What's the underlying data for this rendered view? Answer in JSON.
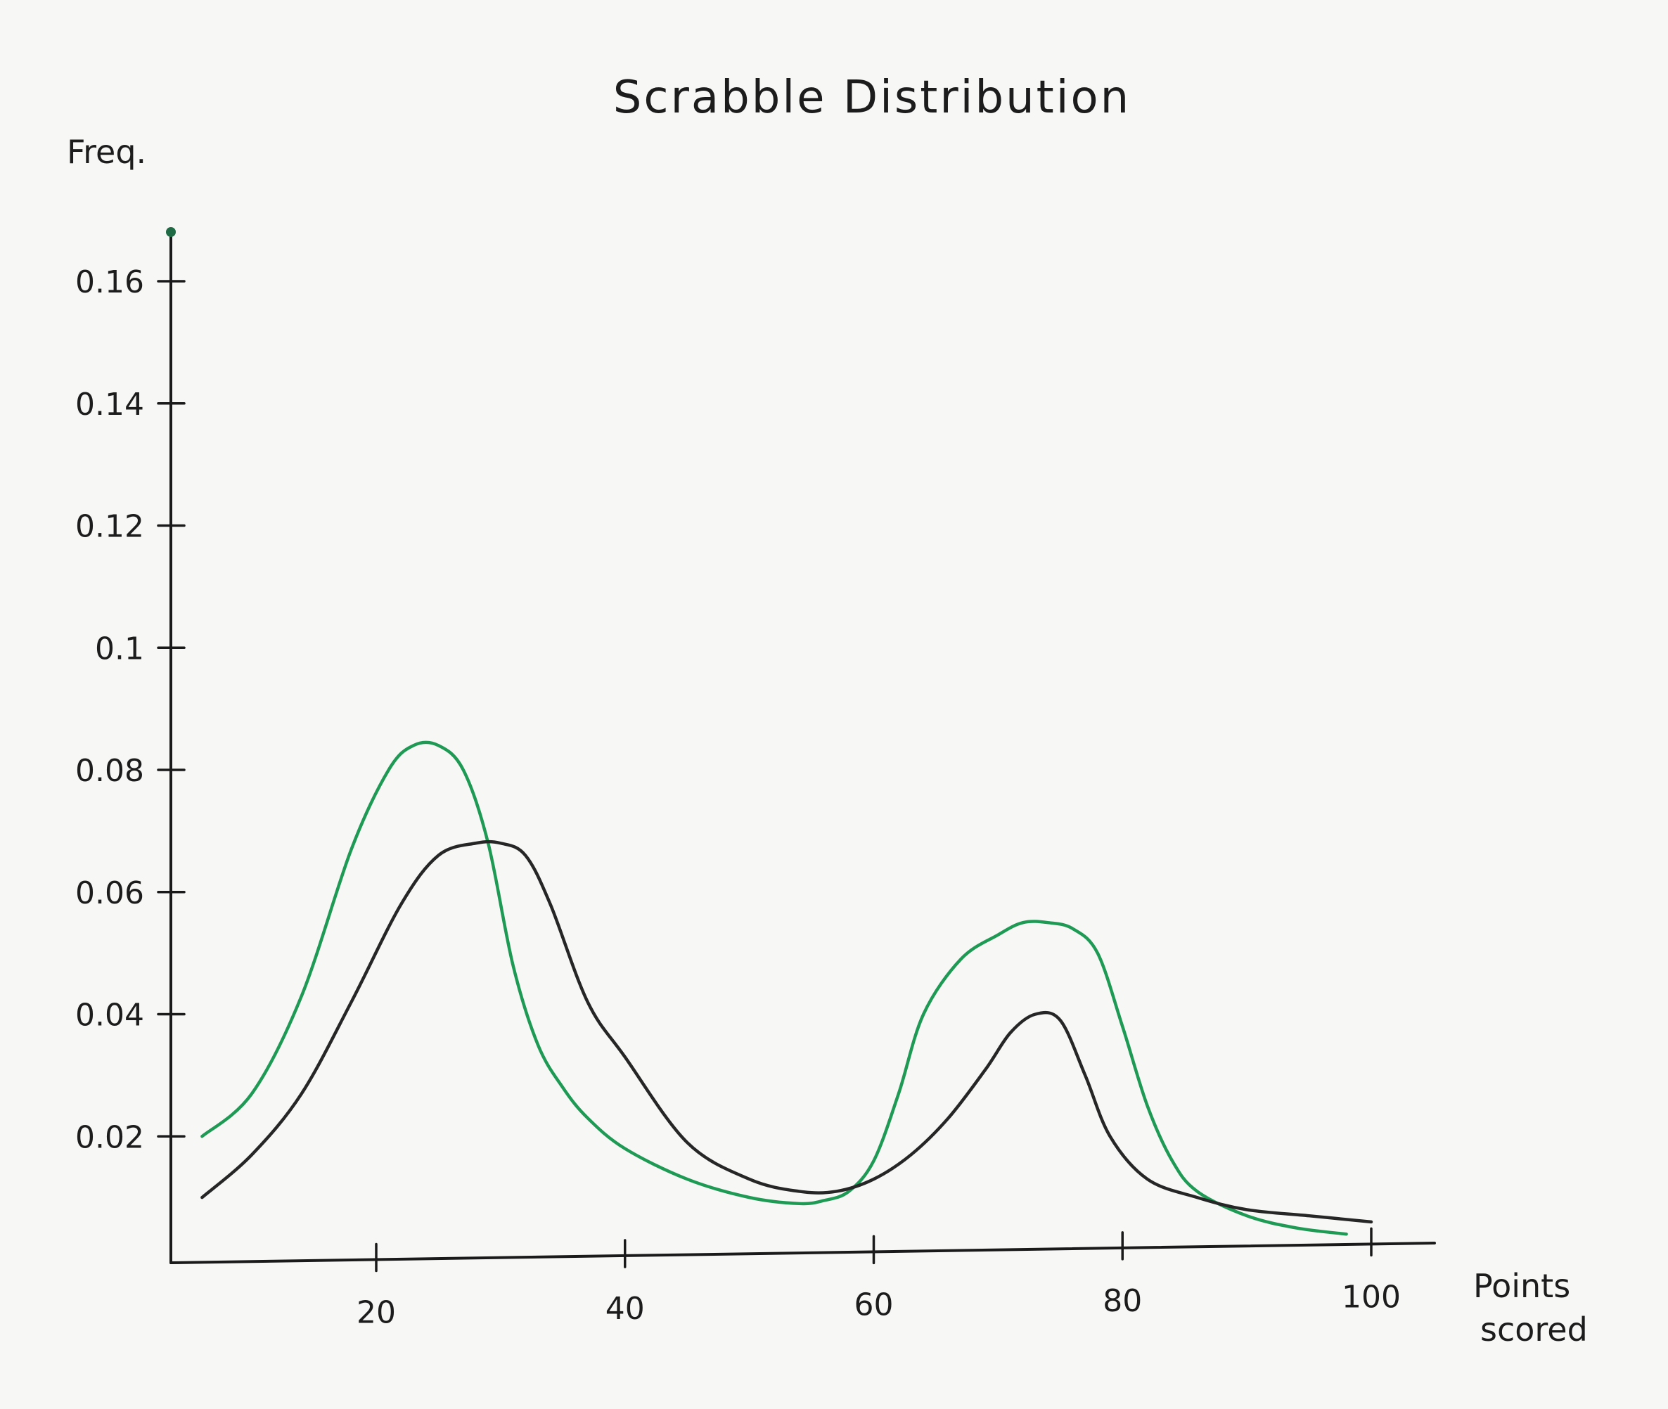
{
  "chart_data": {
    "type": "line",
    "title": "Scrabble Distribution",
    "xlabel": "Points scored",
    "ylabel": "Freq.",
    "xlim": [
      5,
      105
    ],
    "ylim": [
      0,
      0.17
    ],
    "x_ticks": [
      {
        "value": 20,
        "label": "20"
      },
      {
        "value": 40,
        "label": "40"
      },
      {
        "value": 60,
        "label": "60"
      },
      {
        "value": 80,
        "label": "80"
      },
      {
        "value": 100,
        "label": "100"
      }
    ],
    "y_ticks": [
      {
        "value": 0.02,
        "label": "0.02"
      },
      {
        "value": 0.04,
        "label": "0.04"
      },
      {
        "value": 0.06,
        "label": "0.06"
      },
      {
        "value": 0.08,
        "label": "0.08"
      },
      {
        "value": 0.1,
        "label": "0.1"
      },
      {
        "value": 0.12,
        "label": "0.12"
      },
      {
        "value": 0.14,
        "label": "0.14"
      },
      {
        "value": 0.16,
        "label": "0.16"
      }
    ],
    "grid": false,
    "legend": "none",
    "series": [
      {
        "color": "#1f9a55",
        "x": [
          6,
          10,
          14,
          18,
          21,
          23,
          25,
          27,
          29,
          31,
          33,
          35,
          37,
          40,
          45,
          50,
          54,
          56,
          58,
          60,
          62,
          64,
          67,
          70,
          72,
          74,
          76,
          78,
          80,
          82,
          84,
          86,
          90,
          94,
          98
        ],
        "y": [
          0.02,
          0.027,
          0.043,
          0.067,
          0.08,
          0.084,
          0.084,
          0.08,
          0.068,
          0.048,
          0.035,
          0.028,
          0.023,
          0.018,
          0.013,
          0.01,
          0.009,
          0.0095,
          0.011,
          0.016,
          0.027,
          0.04,
          0.049,
          0.053,
          0.055,
          0.055,
          0.054,
          0.05,
          0.038,
          0.025,
          0.016,
          0.011,
          0.007,
          0.005,
          0.004
        ]
      },
      {
        "color": "#262626",
        "x": [
          6,
          10,
          14,
          18,
          22,
          25,
          28,
          30,
          32,
          34,
          37,
          40,
          45,
          50,
          54,
          57,
          60,
          63,
          66,
          69,
          71,
          73,
          75,
          77,
          79,
          82,
          86,
          90,
          95,
          100
        ],
        "y": [
          0.01,
          0.017,
          0.027,
          0.042,
          0.058,
          0.066,
          0.068,
          0.068,
          0.066,
          0.058,
          0.042,
          0.033,
          0.019,
          0.013,
          0.011,
          0.011,
          0.013,
          0.017,
          0.023,
          0.031,
          0.037,
          0.04,
          0.039,
          0.03,
          0.02,
          0.013,
          0.01,
          0.008,
          0.007,
          0.006
        ]
      }
    ]
  }
}
